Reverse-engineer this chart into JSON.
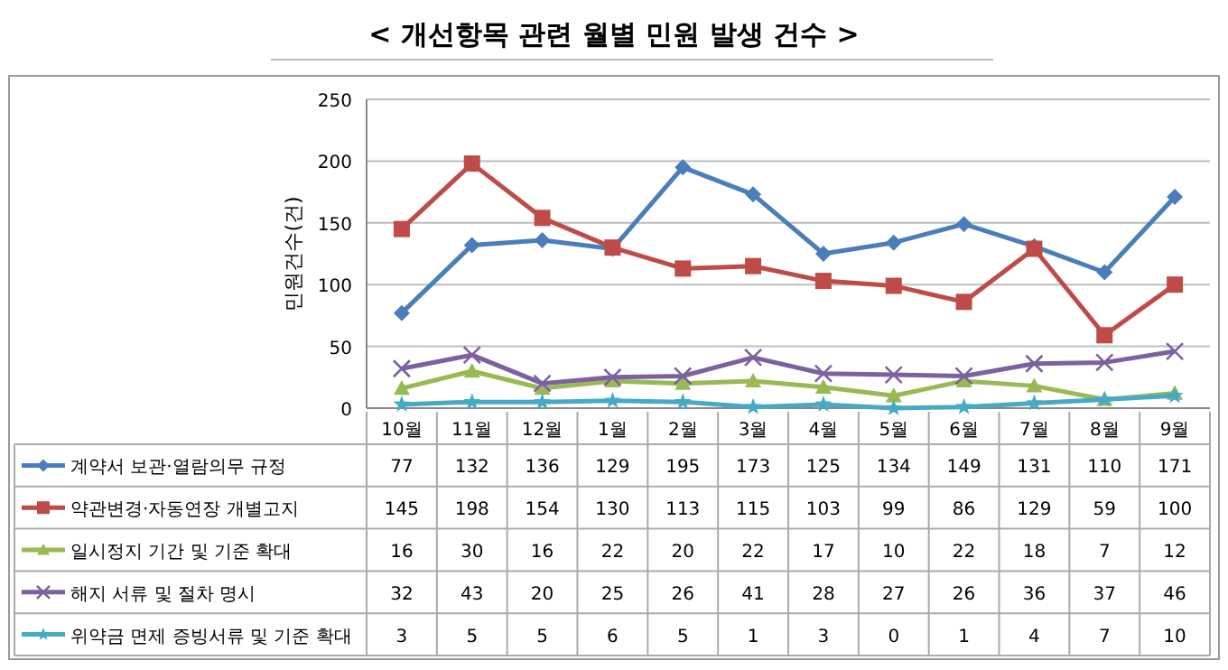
{
  "chart_data": {
    "type": "line",
    "title": "< 개선항목 관련 월별 민원 발생 건수 >",
    "ylabel": "민원건수(건)",
    "categories": [
      "10월",
      "11월",
      "12월",
      "1월",
      "2월",
      "3월",
      "4월",
      "5월",
      "6월",
      "7월",
      "8월",
      "9월"
    ],
    "series": [
      {
        "name": "계약서 보관·열람의무 규정",
        "color": "#4a7ebb",
        "marker": "diamond",
        "values": [
          77,
          132,
          136,
          129,
          195,
          173,
          125,
          134,
          149,
          131,
          110,
          171
        ]
      },
      {
        "name": "약관변경·자동연장 개별고지",
        "color": "#be4b48",
        "marker": "square",
        "values": [
          145,
          198,
          154,
          130,
          113,
          115,
          103,
          99,
          86,
          129,
          59,
          100
        ]
      },
      {
        "name": "일시정지 기간 및 기준 확대",
        "color": "#98b954",
        "marker": "triangle",
        "values": [
          16,
          30,
          16,
          22,
          20,
          22,
          17,
          10,
          22,
          18,
          7,
          12
        ]
      },
      {
        "name": "해지 서류 및 절차 명시",
        "color": "#7d60a0",
        "marker": "cross",
        "values": [
          32,
          43,
          20,
          25,
          26,
          41,
          28,
          27,
          26,
          36,
          37,
          46
        ]
      },
      {
        "name": "위약금 면제 증빙서류 및 기준 확대",
        "color": "#46aac5",
        "marker": "star",
        "values": [
          3,
          5,
          5,
          6,
          5,
          1,
          3,
          0,
          1,
          4,
          7,
          10
        ]
      }
    ],
    "ylim": [
      0,
      250
    ],
    "yticks": [
      0,
      50,
      100,
      150,
      200,
      250
    ],
    "grid": "y",
    "data_labels": true,
    "legend": "bottom",
    "line_style": "solid"
  }
}
